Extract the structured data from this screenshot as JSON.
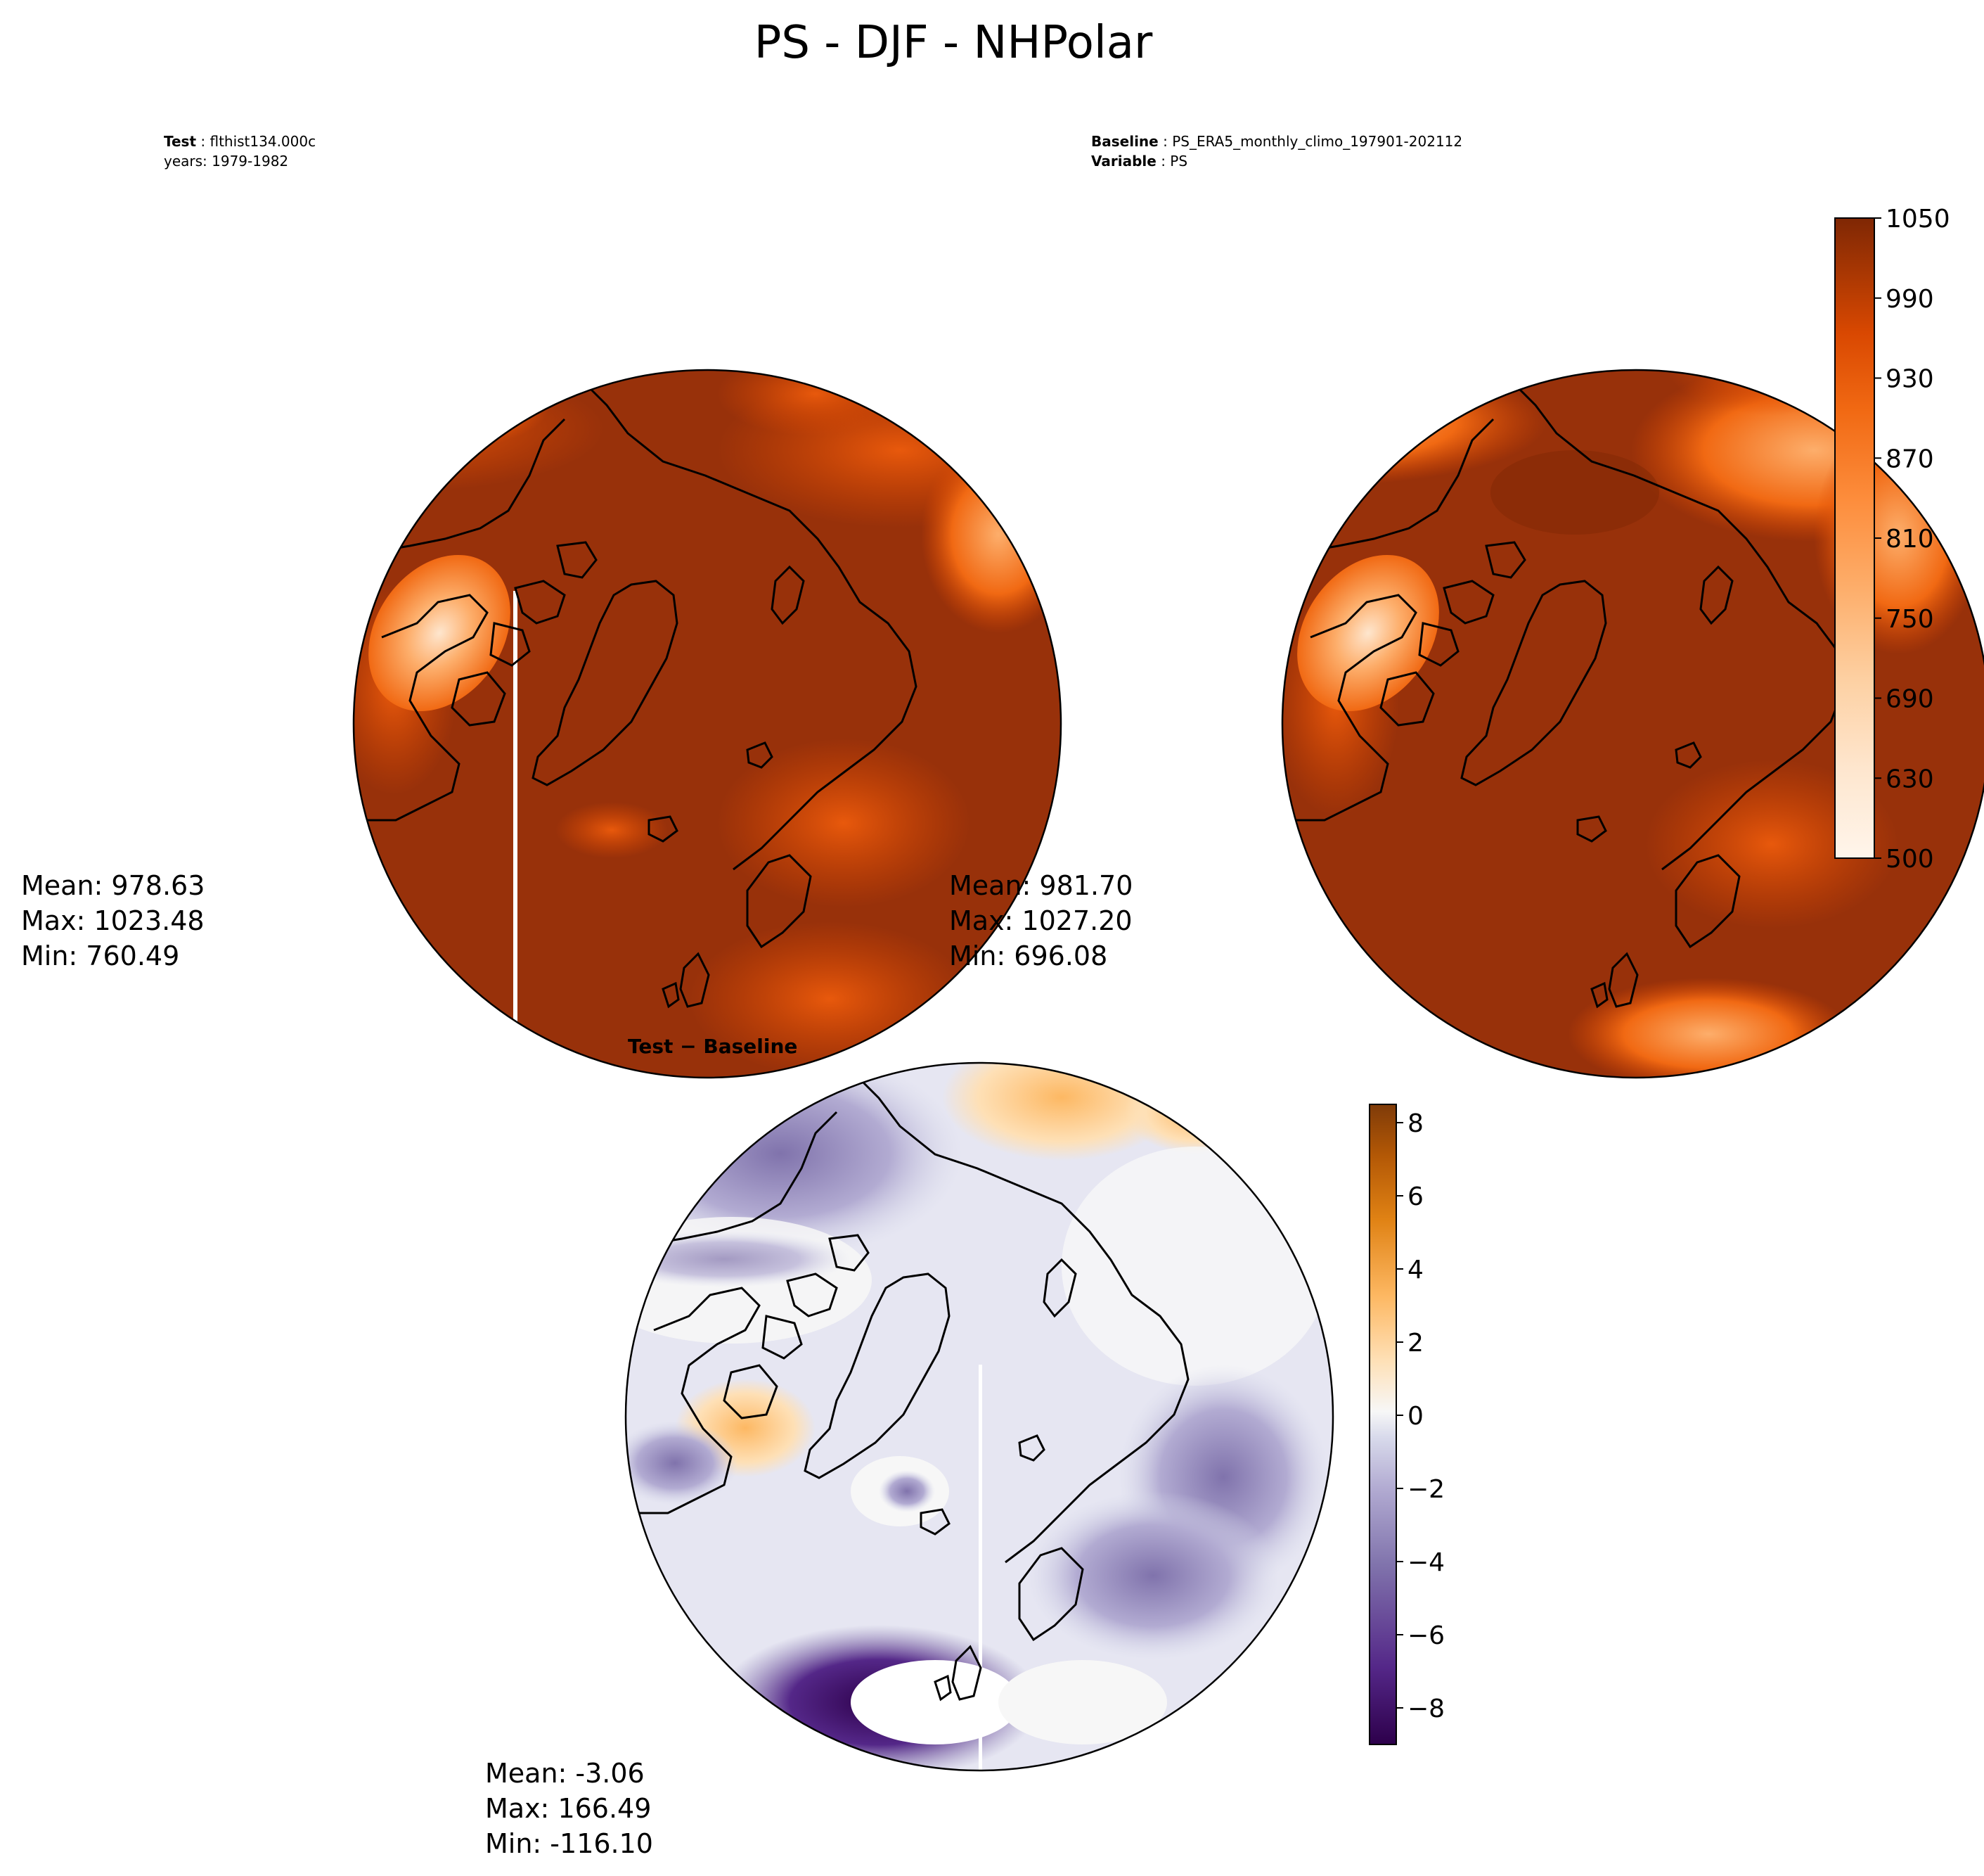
{
  "figure": {
    "title": "PS - DJF - NHPolar"
  },
  "colors": {
    "absolute_scale": [
      "#fff5eb",
      "#fee6ce",
      "#fdd0a2",
      "#fdae6b",
      "#fd8d3c",
      "#f16913",
      "#d94801",
      "#a63603",
      "#7f2704"
    ],
    "diff_scale": [
      "#2d004b",
      "#542788",
      "#8073ac",
      "#b2abd2",
      "#d8daeb",
      "#f7f7f7",
      "#fee0b6",
      "#fdb863",
      "#e08214",
      "#b35806",
      "#7f3b08"
    ],
    "coastline": "#000000"
  },
  "chart_data": [
    {
      "type": "heatmap",
      "panel": "test",
      "header": [
        {
          "label": "Test",
          "value": "flthist134.000c"
        },
        {
          "label": "",
          "value": "years: 1979-1982"
        }
      ],
      "projection": "north-polar-stereographic",
      "stats": [
        "Mean: 978.63",
        "Max: 1023.48",
        "Min: 760.49"
      ],
      "colorbar": null
    },
    {
      "type": "heatmap",
      "panel": "baseline",
      "header": [
        {
          "label": "Baseline",
          "value": "PS_ERA5_monthly_climo_197901-202112"
        },
        {
          "label": "Variable",
          "value": "PS"
        }
      ],
      "projection": "north-polar-stereographic",
      "stats": [
        "Mean: 981.70",
        "Max: 1027.20",
        "Min: 696.08"
      ],
      "colorbar": {
        "ticks": [
          "500",
          "630",
          "690",
          "750",
          "810",
          "870",
          "930",
          "990",
          "1050"
        ],
        "levels": [
          500,
          630,
          660,
          690,
          720,
          750,
          780,
          810,
          840,
          870,
          900,
          930,
          960,
          990,
          1020,
          1050
        ],
        "range": [
          500,
          1050
        ]
      }
    },
    {
      "type": "heatmap",
      "panel": "difference",
      "header": [
        {
          "label": "Test − Baseline",
          "value": ""
        }
      ],
      "projection": "north-polar-stereographic",
      "stats": [
        "Mean: -3.06",
        "Max: 166.49",
        "Min: -116.10"
      ],
      "colorbar": {
        "ticks": [
          "−8",
          "−6",
          "−4",
          "−2",
          "0",
          "2",
          "4",
          "6",
          "8"
        ],
        "tick_values": [
          -8,
          -6,
          -4,
          -2,
          0,
          2,
          4,
          6,
          8
        ],
        "range": [
          -9,
          8.5
        ]
      }
    }
  ]
}
